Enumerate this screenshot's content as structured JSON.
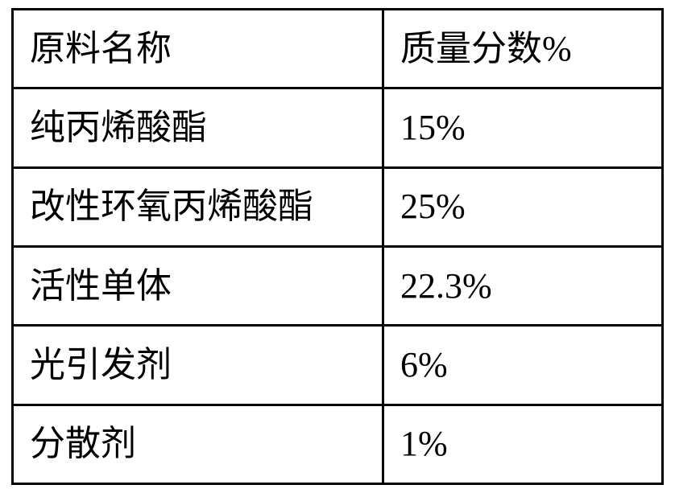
{
  "table": {
    "border_color": "#000000",
    "background_color": "#ffffff",
    "text_color": "#000000",
    "font_size_pt": 33,
    "column_widths_pct": [
      57,
      43
    ],
    "columns": [
      "原料名称",
      "质量分数%"
    ],
    "rows": [
      [
        "纯丙烯酸酯",
        "15%"
      ],
      [
        "改性环氧丙烯酸酯",
        "25%"
      ],
      [
        "活性单体",
        "22.3%"
      ],
      [
        "光引发剂",
        "6%"
      ],
      [
        "分散剂",
        "1%"
      ]
    ]
  }
}
